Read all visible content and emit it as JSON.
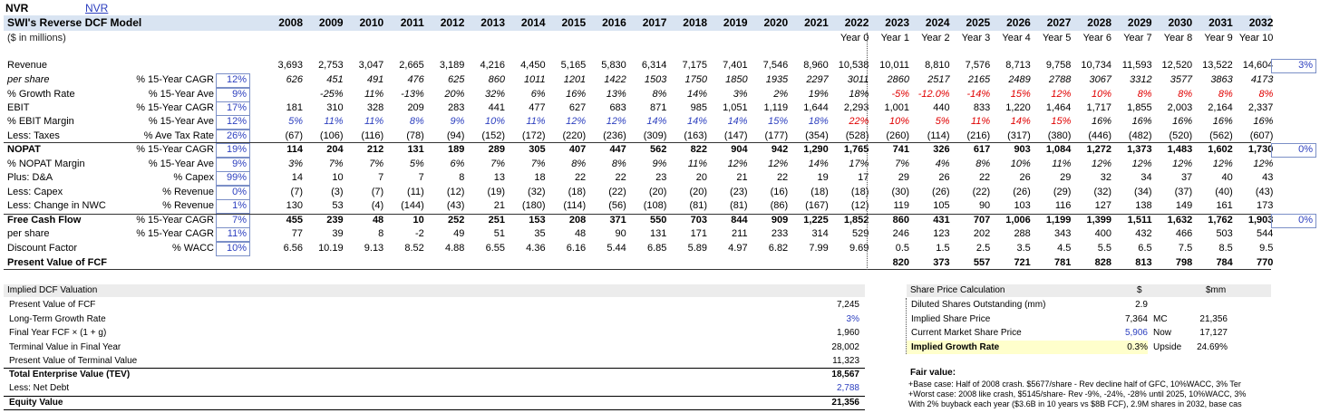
{
  "ticker": "NVR",
  "ticker_link": "NVR",
  "title": "SWI's Reverse DCF Model",
  "units": "($ in millions)",
  "years": [
    "2008",
    "2009",
    "2010",
    "2011",
    "2012",
    "2013",
    "2014",
    "2015",
    "2016",
    "2017",
    "2018",
    "2019",
    "2020",
    "2021",
    "2022",
    "2023",
    "2024",
    "2025",
    "2026",
    "2027",
    "2028",
    "2029",
    "2030",
    "2031",
    "2032"
  ],
  "year_labels": [
    "Year 0",
    "Year 1",
    "Year 2",
    "Year 3",
    "Year 4",
    "Year 5",
    "Year 6",
    "Year 7",
    "Year 8",
    "Year 9",
    "Year 10"
  ],
  "rows": [
    {
      "label": "Revenue",
      "desc": "",
      "dval": "",
      "cells": [
        "3,693",
        "2,753",
        "3,047",
        "2,665",
        "3,189",
        "4,216",
        "4,450",
        "5,165",
        "5,830",
        "6,314",
        "7,175",
        "7,401",
        "7,546",
        "8,960",
        "10,538",
        "10,011",
        "8,810",
        "7,576",
        "8,713",
        "9,758",
        "10,734",
        "11,593",
        "12,520",
        "13,522",
        "14,604"
      ],
      "right": "3%"
    },
    {
      "label": "per share",
      "desc": "% 15-Year CAGR",
      "dval": "12%",
      "cells": [
        "626",
        "451",
        "491",
        "476",
        "625",
        "860",
        "1011",
        "1201",
        "1422",
        "1503",
        "1750",
        "1850",
        "1935",
        "2297",
        "3011",
        "2860",
        "2517",
        "2165",
        "2489",
        "2788",
        "3067",
        "3312",
        "3577",
        "3863",
        "4173"
      ]
    },
    {
      "label": "% Growth Rate",
      "desc": "% 15-Year Ave",
      "dval": "9%",
      "cells": [
        "",
        "-25%",
        "11%",
        "-13%",
        "20%",
        "32%",
        "6%",
        "16%",
        "13%",
        "8%",
        "14%",
        "3%",
        "2%",
        "19%",
        "18%",
        "-5%",
        "-12.0%",
        "-14%",
        "15%",
        "12%",
        "10%",
        "8%",
        "8%",
        "8%",
        "8%"
      ]
    },
    {
      "label": "EBIT",
      "desc": "% 15-Year CAGR",
      "dval": "17%",
      "cells": [
        "181",
        "310",
        "328",
        "209",
        "283",
        "441",
        "477",
        "627",
        "683",
        "871",
        "985",
        "1,051",
        "1,119",
        "1,644",
        "2,293",
        "1,001",
        "440",
        "833",
        "1,220",
        "1,464",
        "1,717",
        "1,855",
        "2,003",
        "2,164",
        "2,337"
      ]
    },
    {
      "label": "% EBIT Margin",
      "desc": "% 15-Year Ave",
      "dval": "12%",
      "cells": [
        "5%",
        "11%",
        "11%",
        "8%",
        "9%",
        "10%",
        "11%",
        "12%",
        "12%",
        "14%",
        "14%",
        "14%",
        "15%",
        "18%",
        "22%",
        "10%",
        "5%",
        "11%",
        "14%",
        "15%",
        "16%",
        "16%",
        "16%",
        "16%",
        "16%"
      ]
    },
    {
      "label": "Less: Taxes",
      "desc": "% Ave Tax Rate",
      "dval": "26%",
      "cells": [
        "(67)",
        "(106)",
        "(116)",
        "(78)",
        "(94)",
        "(152)",
        "(172)",
        "(220)",
        "(236)",
        "(309)",
        "(163)",
        "(147)",
        "(177)",
        "(354)",
        "(528)",
        "(260)",
        "(114)",
        "(216)",
        "(317)",
        "(380)",
        "(446)",
        "(482)",
        "(520)",
        "(562)",
        "(607)"
      ]
    },
    {
      "label": "NOPAT",
      "desc": "% 15-Year CAGR",
      "dval": "19%",
      "cells": [
        "114",
        "204",
        "212",
        "131",
        "189",
        "289",
        "305",
        "407",
        "447",
        "562",
        "822",
        "904",
        "942",
        "1,290",
        "1,765",
        "741",
        "326",
        "617",
        "903",
        "1,084",
        "1,272",
        "1,373",
        "1,483",
        "1,602",
        "1,730"
      ],
      "right": "0%"
    },
    {
      "label": "% NOPAT Margin",
      "desc": "% 15-Year Ave",
      "dval": "9%",
      "cells": [
        "3%",
        "7%",
        "7%",
        "5%",
        "6%",
        "7%",
        "7%",
        "8%",
        "8%",
        "9%",
        "11%",
        "12%",
        "12%",
        "14%",
        "17%",
        "7%",
        "4%",
        "8%",
        "10%",
        "11%",
        "12%",
        "12%",
        "12%",
        "12%",
        "12%"
      ]
    },
    {
      "label": "Plus: D&A",
      "desc": "% Capex",
      "dval": "99%",
      "cells": [
        "14",
        "10",
        "7",
        "7",
        "8",
        "13",
        "18",
        "22",
        "22",
        "23",
        "20",
        "21",
        "22",
        "19",
        "17",
        "29",
        "26",
        "22",
        "26",
        "29",
        "32",
        "34",
        "37",
        "40",
        "43"
      ]
    },
    {
      "label": "Less: Capex",
      "desc": "% Revenue",
      "dval": "0%",
      "cells": [
        "(7)",
        "(3)",
        "(7)",
        "(11)",
        "(12)",
        "(19)",
        "(32)",
        "(18)",
        "(22)",
        "(20)",
        "(20)",
        "(23)",
        "(16)",
        "(18)",
        "(18)",
        "(30)",
        "(26)",
        "(22)",
        "(26)",
        "(29)",
        "(32)",
        "(34)",
        "(37)",
        "(40)",
        "(43)"
      ]
    },
    {
      "label": "Less: Change in NWC",
      "desc": "% Revenue",
      "dval": "1%",
      "cells": [
        "130",
        "53",
        "(4)",
        "(144)",
        "(43)",
        "21",
        "(180)",
        "(114)",
        "(56)",
        "(108)",
        "(81)",
        "(81)",
        "(86)",
        "(167)",
        "(12)",
        "119",
        "105",
        "90",
        "103",
        "116",
        "127",
        "138",
        "149",
        "161",
        "173"
      ]
    },
    {
      "label": "Free Cash Flow",
      "desc": "% 15-Year CAGR",
      "dval": "7%",
      "cells": [
        "455",
        "239",
        "48",
        "10",
        "252",
        "251",
        "153",
        "208",
        "371",
        "550",
        "703",
        "844",
        "909",
        "1,225",
        "1,852",
        "860",
        "431",
        "707",
        "1,006",
        "1,199",
        "1,399",
        "1,511",
        "1,632",
        "1,762",
        "1,903"
      ],
      "right": "0%"
    },
    {
      "label": "per share",
      "desc": "% 15-Year CAGR",
      "dval": "11%",
      "cells": [
        "77",
        "39",
        "8",
        "-2",
        "49",
        "51",
        "35",
        "48",
        "90",
        "131",
        "171",
        "211",
        "233",
        "314",
        "529",
        "246",
        "123",
        "202",
        "288",
        "343",
        "400",
        "432",
        "466",
        "503",
        "544"
      ]
    },
    {
      "label": "Discount Factor",
      "desc": "% WACC",
      "dval": "10%",
      "cells": [
        "6.56",
        "10.19",
        "9.13",
        "8.52",
        "4.88",
        "6.55",
        "4.36",
        "6.16",
        "5.44",
        "6.85",
        "5.89",
        "4.97",
        "6.82",
        "7.99",
        "9.69",
        "0.5",
        "1.5",
        "2.5",
        "3.5",
        "4.5",
        "5.5",
        "6.5",
        "7.5",
        "8.5",
        "9.5"
      ]
    },
    {
      "label": "Present Value of FCF",
      "desc": "",
      "dval": "",
      "cells": [
        "",
        "",
        "",
        "",
        "",
        "",
        "",
        "",
        "",
        "",
        "",
        "",
        "",
        "",
        "",
        "820",
        "373",
        "557",
        "721",
        "781",
        "828",
        "813",
        "798",
        "784",
        "770"
      ]
    }
  ],
  "implied_dcf": {
    "title": "Implied DCF Valuation",
    "items": [
      {
        "label": "Present Value of FCF",
        "value": "7,245"
      },
      {
        "label": "Long-Term Growth Rate",
        "value": "3%"
      },
      {
        "label": "Final Year FCF × (1 + g)",
        "value": "1,960"
      },
      {
        "label": "Terminal Value in Final Year",
        "value": "28,002"
      },
      {
        "label": "Present Value of Terminal Value",
        "value": "11,323"
      },
      {
        "label": "Total Enterprise Value (TEV)",
        "value": "18,567"
      },
      {
        "label": "Less: Net Debt",
        "value": "2,788"
      },
      {
        "label": "Equity Value",
        "value": "21,356"
      }
    ]
  },
  "share_price": {
    "title": "Share Price Calculation",
    "col1": "$",
    "col2": "$mm",
    "items": [
      {
        "label": "Diluted Shares Outstanding (mm)",
        "value": "2.9",
        "tag": "",
        "extra": ""
      },
      {
        "label": "Implied Share Price",
        "value": "7,364",
        "tag": "MC",
        "extra": "21,356"
      },
      {
        "label": "Current Market Share Price",
        "value": "5,906",
        "tag": "Now",
        "extra": "17,127"
      },
      {
        "label": "Implied Growth Rate",
        "value": "0.3%",
        "tag": "Upside",
        "extra": "24.69%"
      }
    ]
  },
  "fair_value": {
    "title": "Fair value:",
    "lines": [
      "+Base case: Half of 2008 crash. $5677/share - Rev decline half of GFC, 10%WACC, 3% Ter",
      "+Worst case: 2008 like crash, $5145/share- Rev -9%, -24%, -28% until 2025, 10%WACC, 3%",
      "With 2% buyback each year ($3.6B in 10 years vs $8B FCF), 2.9M shares in 2032, base cas"
    ]
  }
}
